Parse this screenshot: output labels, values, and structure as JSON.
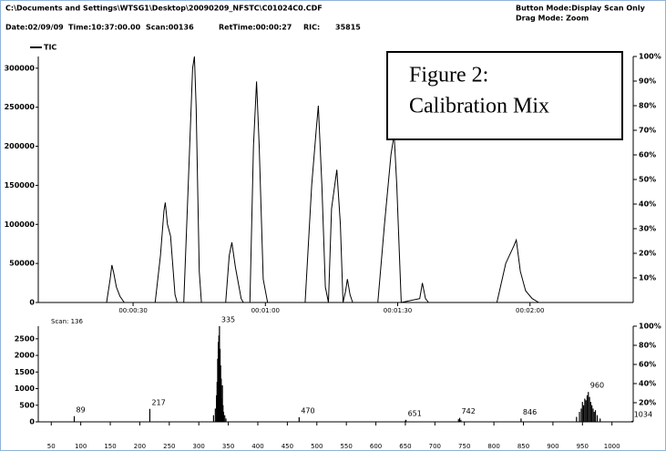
{
  "header": {
    "file": "C:\\Documents and Settings\\WTSG1\\Desktop\\20090209_NFSTC\\C01024C0.CDF",
    "button_mode": "Button Mode:Display Scan Only",
    "drag_mode": "Drag Mode:  Zoom",
    "date": "Date:02/09/09",
    "time": "Time:10:37:00.00",
    "scan": "Scan:00136",
    "ret_time": "RetTime:00:00:27",
    "ric_label": "RIC:",
    "ric_value": "35815"
  },
  "chart_data": [
    {
      "type": "line",
      "annotation": [
        "Figure 2:",
        "Calibration Mix"
      ],
      "legend": "top-left",
      "xlim": [
        8.5,
        143.4
      ],
      "xticks": [
        {
          "value": 30,
          "label": "00:00:30"
        },
        {
          "value": 60,
          "label": "00:01:00"
        },
        {
          "value": 90,
          "label": "00:01:30"
        },
        {
          "value": 120,
          "label": "00:02:00"
        }
      ],
      "ylim": [
        0,
        315000
      ],
      "yticks": [
        0,
        50000,
        100000,
        150000,
        200000,
        250000,
        300000
      ],
      "y2lim": [
        0,
        100
      ],
      "y2ticks": [
        {
          "value": 10,
          "label": "10%"
        },
        {
          "value": 20,
          "label": "20%"
        },
        {
          "value": 30,
          "label": "30%"
        },
        {
          "value": 40,
          "label": "40%"
        },
        {
          "value": 50,
          "label": "50%"
        },
        {
          "value": 60,
          "label": "60%"
        },
        {
          "value": 70,
          "label": "70%"
        },
        {
          "value": 80,
          "label": "80%"
        },
        {
          "value": 90,
          "label": "90%"
        },
        {
          "value": 100,
          "label": "100%"
        }
      ],
      "series": [
        {
          "name": "TIC",
          "color": "#000000",
          "x": [
            24.0,
            24.8,
            25.2,
            25.6,
            26.2,
            27.0,
            28.0,
            35.0,
            36.2,
            37.0,
            37.3,
            37.8,
            38.5,
            39.5,
            40.0,
            41.5,
            42.5,
            43.5,
            43.9,
            44.3,
            45.0,
            45.5,
            51.0,
            51.8,
            52.4,
            53.2,
            54.5,
            55.0,
            56.5,
            57.3,
            58.0,
            58.6,
            59.5,
            60.5,
            69.0,
            70.5,
            71.5,
            72.0,
            72.8,
            73.6,
            74.3,
            75.0,
            76.2,
            77.0,
            77.6,
            78.2,
            78.6,
            79.2,
            79.8,
            85.5,
            87.0,
            88.5,
            89.2,
            89.8,
            90.8,
            95.0,
            95.6,
            96.3,
            97.0,
            112.5,
            114.5,
            116.3,
            116.9,
            117.8,
            119.0,
            120.5,
            122.0
          ],
          "values": [
            0,
            30000,
            48000,
            38000,
            20000,
            8000,
            0,
            0,
            60000,
            118000,
            128000,
            100000,
            85000,
            10000,
            0,
            0,
            150000,
            300000,
            315000,
            250000,
            40000,
            0,
            0,
            60000,
            77000,
            45000,
            5000,
            0,
            0,
            200000,
            283000,
            200000,
            30000,
            0,
            0,
            150000,
            220000,
            252000,
            150000,
            20000,
            0,
            120000,
            170000,
            100000,
            0,
            15000,
            30000,
            10000,
            0,
            0,
            100000,
            190000,
            215000,
            150000,
            0,
            5000,
            25000,
            5000,
            0,
            0,
            50000,
            72000,
            80000,
            40000,
            15000,
            5000,
            0
          ]
        }
      ]
    },
    {
      "type": "bar",
      "title": "Scan: 136",
      "color": "#000000",
      "xlim": [
        28,
        1036
      ],
      "xticks": [
        50,
        100,
        150,
        200,
        250,
        300,
        350,
        400,
        450,
        500,
        550,
        600,
        650,
        700,
        750,
        800,
        850,
        900,
        950,
        1000
      ],
      "ylim": [
        0,
        2880
      ],
      "yticks": [
        0,
        500,
        1000,
        1500,
        2000,
        2500
      ],
      "y2lim": [
        0,
        100
      ],
      "y2ticks": [
        {
          "value": 20,
          "label": "20%"
        },
        {
          "value": 40,
          "label": "40%"
        },
        {
          "value": 60,
          "label": "60%"
        },
        {
          "value": 80,
          "label": "80%"
        },
        {
          "value": 100,
          "label": "100%"
        }
      ],
      "peak_labels": [
        89,
        217,
        335,
        470,
        651,
        742,
        846,
        960,
        1034
      ],
      "x": [
        89,
        217,
        325,
        328,
        330,
        331,
        332,
        333,
        334,
        335,
        336,
        337,
        338,
        339,
        340,
        341,
        342,
        344,
        346,
        470,
        650,
        651,
        740,
        742,
        744,
        846,
        940,
        945,
        948,
        950,
        952,
        954,
        956,
        958,
        960,
        962,
        964,
        966,
        968,
        970,
        972,
        975,
        980,
        1034
      ],
      "values": [
        170,
        390,
        200,
        400,
        800,
        1200,
        1900,
        2400,
        2600,
        2880,
        2200,
        1700,
        1300,
        700,
        1100,
        500,
        300,
        200,
        100,
        140,
        40,
        60,
        80,
        120,
        60,
        100,
        150,
        300,
        400,
        600,
        500,
        700,
        650,
        800,
        900,
        750,
        600,
        500,
        400,
        300,
        350,
        200,
        100,
        30
      ]
    }
  ]
}
